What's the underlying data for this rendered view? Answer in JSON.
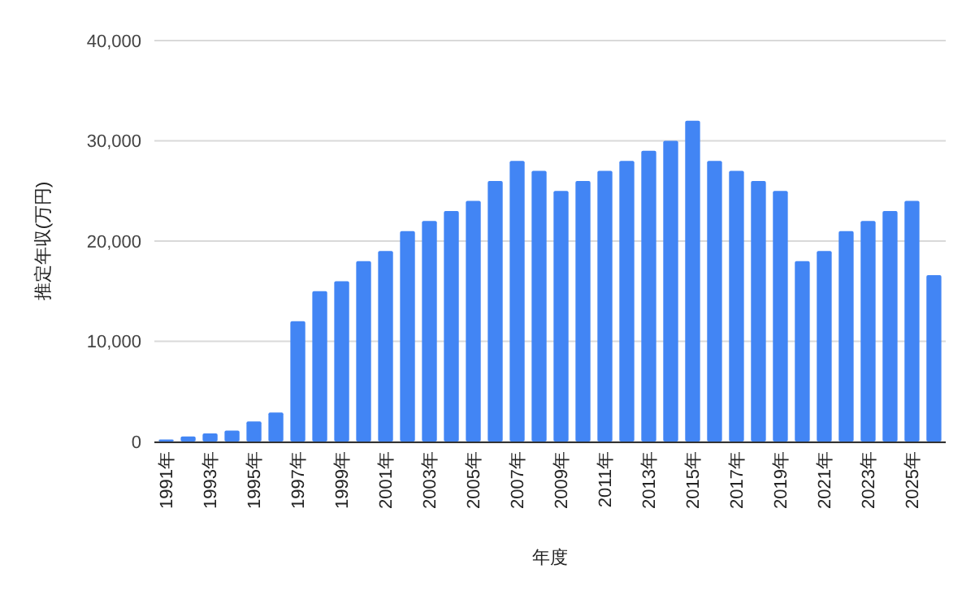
{
  "chart_data": {
    "type": "bar",
    "xlabel": "年度",
    "ylabel": "推定年収(万円)",
    "categories": [
      "1991年",
      null,
      "1993年",
      null,
      "1995年",
      null,
      "1997年",
      null,
      "1999年",
      null,
      "2001年",
      null,
      "2003年",
      null,
      "2005年",
      null,
      "2007年",
      null,
      "2009年",
      null,
      "2011年",
      null,
      "2013年",
      null,
      "2015年",
      null,
      "2017年",
      null,
      "2019年",
      null,
      "2021年",
      null,
      "2023年",
      null,
      "2025年",
      null
    ],
    "values": [
      200,
      500,
      800,
      1100,
      2000,
      2900,
      12000,
      15000,
      16000,
      18000,
      19000,
      21000,
      22000,
      23000,
      24000,
      26000,
      28000,
      27000,
      25000,
      26000,
      27000,
      28000,
      29000,
      30000,
      32000,
      28000,
      27000,
      26000,
      25000,
      18000,
      19000,
      21000,
      22000,
      23000,
      24000,
      16600
    ],
    "color": "#4285f4",
    "ylim": [
      0,
      40000
    ],
    "yticks": [
      {
        "value": 0,
        "label": "0"
      },
      {
        "value": 10000,
        "label": "10,000"
      },
      {
        "value": 20000,
        "label": "20,000"
      },
      {
        "value": 30000,
        "label": "30,000"
      },
      {
        "value": 40000,
        "label": "40,000"
      }
    ],
    "grid": true
  }
}
